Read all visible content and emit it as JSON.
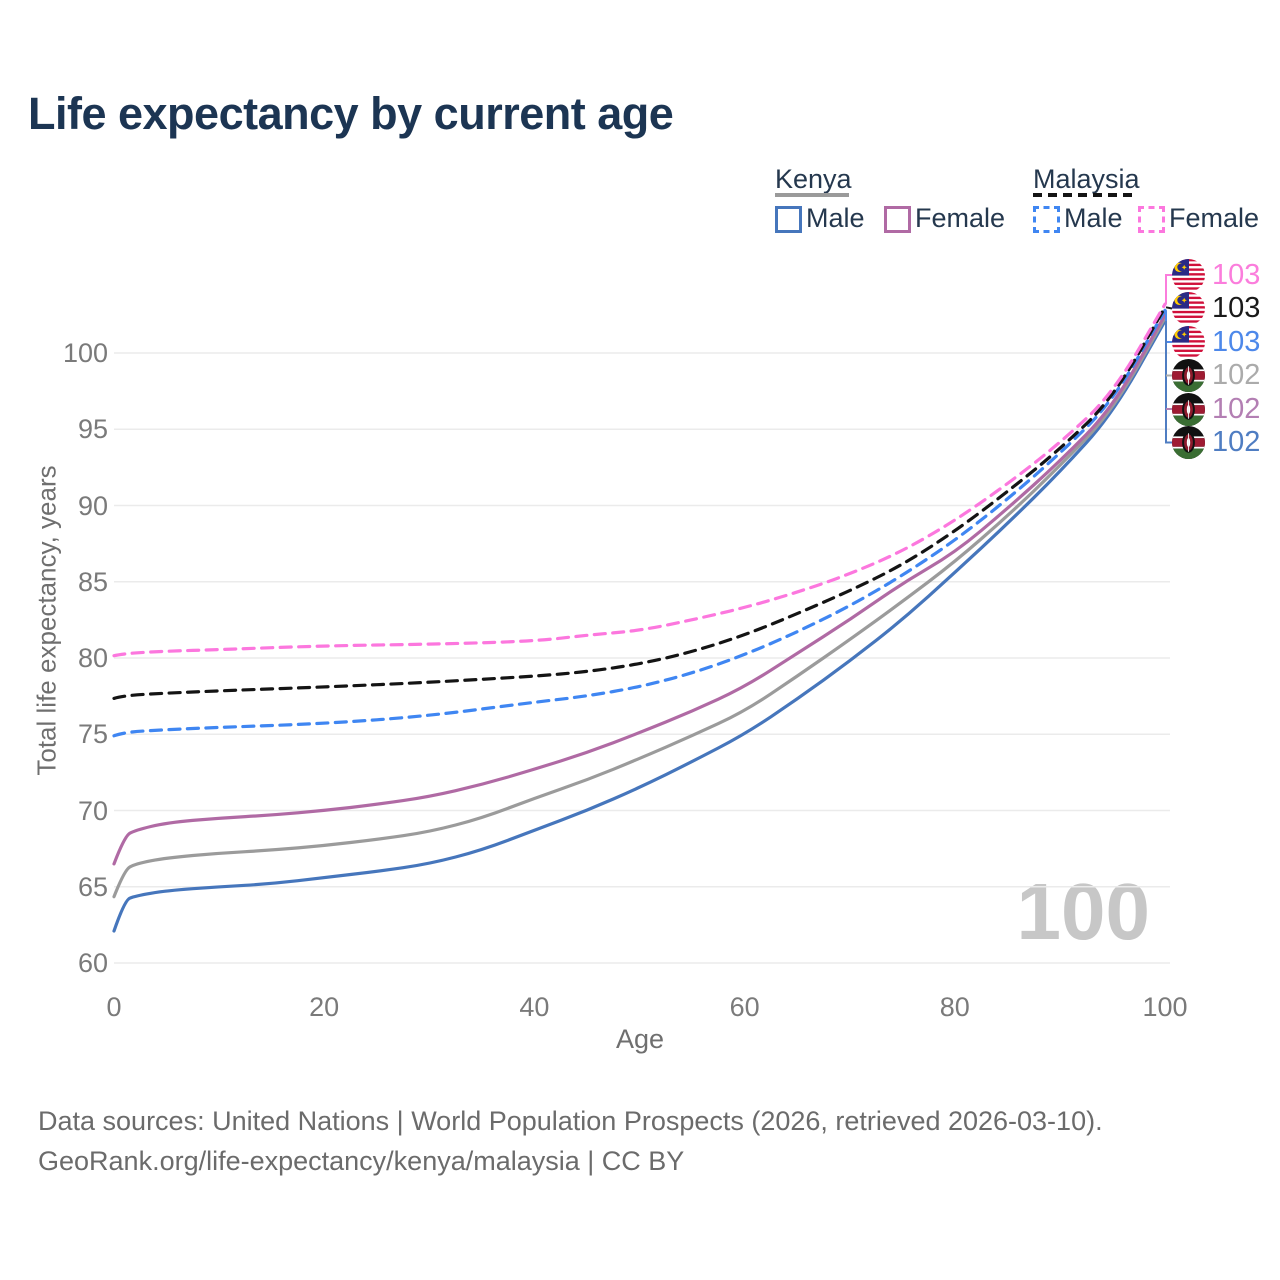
{
  "title": "Life expectancy by current age",
  "watermark": "100",
  "legend": {
    "kenya": {
      "label": "Kenya",
      "male": "Male",
      "female": "Female"
    },
    "malaysia": {
      "label": "Malaysia",
      "male": "Male",
      "female": "Female"
    }
  },
  "footer": {
    "line1": "Data sources: United Nations | World Population Prospects (2026, retrieved 2026-03-10).",
    "line2": "GeoRank.org/life-expectancy/kenya/malaysia | CC BY"
  },
  "colors": {
    "title_text": "#1c3553",
    "legend_text": "#25384e",
    "axis_text": "#7a7a7a",
    "gridline": "#ebebeb",
    "watermark": "#c7c7c7",
    "kenya_male": "#4676bc",
    "kenya_total": "#9b9b9b",
    "kenya_female": "#b06aa4",
    "malaysia_male": "#3f86f2",
    "malaysia_total": "#141414",
    "malaysia_female": "#fc77de"
  },
  "chart_data": {
    "type": "line",
    "title": "Life expectancy by current age",
    "xlabel": "Age",
    "ylabel": "Total life expectancy, years",
    "xlim": [
      0,
      100
    ],
    "ylim": [
      60,
      104
    ],
    "xticks": [
      0,
      20,
      40,
      60,
      80,
      100
    ],
    "yticks": [
      60,
      65,
      70,
      75,
      80,
      85,
      90,
      95,
      100
    ],
    "grid": "horizontal-only",
    "legend_position": "top-right",
    "series": [
      {
        "name": "Kenya Male",
        "country": "kenya",
        "sex": "male",
        "style": "solid",
        "color": "#4676bc",
        "points": [
          [
            0,
            62.1
          ],
          [
            1,
            64.1
          ],
          [
            2,
            64.4
          ],
          [
            5,
            64.75
          ],
          [
            10,
            65.0
          ],
          [
            15,
            65.2
          ],
          [
            20,
            65.6
          ],
          [
            25,
            66.0
          ],
          [
            30,
            66.5
          ],
          [
            35,
            67.4
          ],
          [
            40,
            68.7
          ],
          [
            45,
            70.0
          ],
          [
            50,
            71.5
          ],
          [
            55,
            73.2
          ],
          [
            60,
            75.0
          ],
          [
            65,
            77.3
          ],
          [
            70,
            79.8
          ],
          [
            75,
            82.5
          ],
          [
            80,
            85.6
          ],
          [
            85,
            88.8
          ],
          [
            90,
            92.2
          ],
          [
            95,
            96.0
          ],
          [
            100,
            102.1
          ]
        ]
      },
      {
        "name": "Kenya Total",
        "country": "kenya",
        "sex": "total",
        "style": "solid",
        "color": "#9b9b9b",
        "points": [
          [
            0,
            64.35
          ],
          [
            1,
            66.1
          ],
          [
            2,
            66.5
          ],
          [
            5,
            66.9
          ],
          [
            10,
            67.2
          ],
          [
            15,
            67.4
          ],
          [
            20,
            67.7
          ],
          [
            25,
            68.1
          ],
          [
            30,
            68.6
          ],
          [
            35,
            69.5
          ],
          [
            40,
            70.8
          ],
          [
            45,
            72.0
          ],
          [
            50,
            73.4
          ],
          [
            55,
            74.9
          ],
          [
            60,
            76.5
          ],
          [
            65,
            78.8
          ],
          [
            70,
            81.2
          ],
          [
            75,
            83.7
          ],
          [
            80,
            86.3
          ],
          [
            85,
            89.3
          ],
          [
            90,
            92.6
          ],
          [
            95,
            96.2
          ],
          [
            100,
            102.3
          ]
        ]
      },
      {
        "name": "Kenya Female",
        "country": "kenya",
        "sex": "female",
        "style": "solid",
        "color": "#b06aa4",
        "points": [
          [
            0,
            66.5
          ],
          [
            1,
            68.3
          ],
          [
            2,
            68.7
          ],
          [
            5,
            69.2
          ],
          [
            10,
            69.5
          ],
          [
            15,
            69.7
          ],
          [
            20,
            70.0
          ],
          [
            25,
            70.4
          ],
          [
            30,
            70.9
          ],
          [
            35,
            71.7
          ],
          [
            40,
            72.7
          ],
          [
            45,
            73.8
          ],
          [
            50,
            75.1
          ],
          [
            55,
            76.5
          ],
          [
            60,
            78.1
          ],
          [
            65,
            80.3
          ],
          [
            70,
            82.5
          ],
          [
            75,
            84.9
          ],
          [
            80,
            86.9
          ],
          [
            85,
            89.8
          ],
          [
            90,
            92.9
          ],
          [
            95,
            96.4
          ],
          [
            100,
            102.5
          ]
        ]
      },
      {
        "name": "Malaysia Male",
        "country": "malaysia",
        "sex": "male",
        "style": "dashed",
        "color": "#3f86f2",
        "points": [
          [
            0,
            74.9
          ],
          [
            1,
            75.15
          ],
          [
            5,
            75.3
          ],
          [
            10,
            75.45
          ],
          [
            20,
            75.7
          ],
          [
            30,
            76.2
          ],
          [
            40,
            77.1
          ],
          [
            45,
            77.5
          ],
          [
            50,
            78.1
          ],
          [
            55,
            79.0
          ],
          [
            60,
            80.2
          ],
          [
            65,
            81.7
          ],
          [
            70,
            83.4
          ],
          [
            75,
            85.4
          ],
          [
            80,
            87.7
          ],
          [
            85,
            90.4
          ],
          [
            90,
            93.4
          ],
          [
            95,
            96.8
          ],
          [
            100,
            102.8
          ]
        ]
      },
      {
        "name": "Malaysia Total",
        "country": "malaysia",
        "sex": "total",
        "style": "dashed",
        "color": "#141414",
        "points": [
          [
            0,
            77.35
          ],
          [
            1,
            77.55
          ],
          [
            5,
            77.7
          ],
          [
            10,
            77.85
          ],
          [
            20,
            78.1
          ],
          [
            30,
            78.4
          ],
          [
            40,
            78.8
          ],
          [
            45,
            79.1
          ],
          [
            50,
            79.6
          ],
          [
            55,
            80.4
          ],
          [
            60,
            81.5
          ],
          [
            65,
            82.9
          ],
          [
            70,
            84.4
          ],
          [
            75,
            86.1
          ],
          [
            80,
            88.3
          ],
          [
            85,
            90.9
          ],
          [
            90,
            93.7
          ],
          [
            95,
            97.0
          ],
          [
            100,
            103.0
          ]
        ]
      },
      {
        "name": "Malaysia Female",
        "country": "malaysia",
        "sex": "female",
        "style": "dashed",
        "color": "#fc77de",
        "points": [
          [
            0,
            80.15
          ],
          [
            1,
            80.3
          ],
          [
            5,
            80.45
          ],
          [
            10,
            80.55
          ],
          [
            20,
            80.8
          ],
          [
            30,
            80.9
          ],
          [
            40,
            81.1
          ],
          [
            45,
            81.5
          ],
          [
            50,
            81.8
          ],
          [
            55,
            82.5
          ],
          [
            60,
            83.3
          ],
          [
            65,
            84.3
          ],
          [
            70,
            85.5
          ],
          [
            75,
            87.0
          ],
          [
            80,
            89.0
          ],
          [
            85,
            91.4
          ],
          [
            90,
            94.1
          ],
          [
            95,
            97.3
          ],
          [
            100,
            103.2
          ]
        ]
      }
    ],
    "end_labels": [
      {
        "value": "103",
        "flag": "malaysia",
        "color": "#fb7ddc",
        "series": "Malaysia Female"
      },
      {
        "value": "103",
        "flag": "malaysia",
        "color": "#1a1a1a",
        "series": "Malaysia Total"
      },
      {
        "value": "103",
        "flag": "malaysia",
        "color": "#4d88ea",
        "series": "Malaysia Male"
      },
      {
        "value": "102",
        "flag": "kenya",
        "color": "#ababab",
        "series": "Kenya Total"
      },
      {
        "value": "102",
        "flag": "kenya",
        "color": "#b37fb3",
        "series": "Kenya Female"
      },
      {
        "value": "102",
        "flag": "kenya",
        "color": "#4f7dc2",
        "series": "Kenya Male"
      }
    ]
  }
}
